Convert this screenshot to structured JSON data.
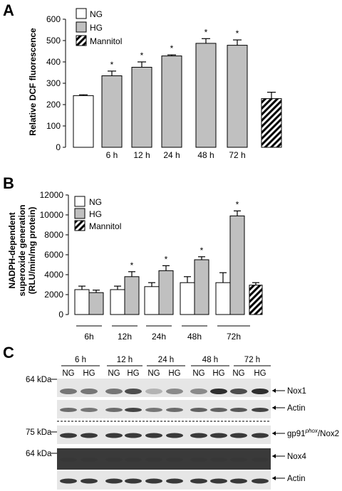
{
  "colors": {
    "ng": "#ffffff",
    "hg": "#c0c0c0",
    "mannitol": "hatched",
    "blot_bg": "#e6e6e6",
    "band": "#1a1a1a"
  },
  "chart_data": [
    {
      "panel": "A",
      "type": "bar",
      "ylabel": "Relative DCF fluorescence",
      "ylim": [
        0,
        600
      ],
      "yticks": [
        0,
        100,
        200,
        300,
        400,
        500,
        600
      ],
      "legend": [
        "NG",
        "HG",
        "Mannitol"
      ],
      "legend_position": "top-left",
      "categories": [
        "",
        "6 h",
        "12 h",
        "24 h",
        "48 h",
        "72 h",
        ""
      ],
      "bars": [
        {
          "group": "NG",
          "value": 242,
          "error": 4,
          "star": ""
        },
        {
          "group": "HG",
          "value": 335,
          "error": 22,
          "star": "*"
        },
        {
          "group": "HG",
          "value": 375,
          "error": 25,
          "star": "*"
        },
        {
          "group": "HG",
          "value": 428,
          "error": 5,
          "star": "*"
        },
        {
          "group": "HG",
          "value": 487,
          "error": 22,
          "star": "*"
        },
        {
          "group": "HG",
          "value": 478,
          "error": 25,
          "star": "*"
        },
        {
          "group": "Mannitol",
          "value": 228,
          "error": 30,
          "star": ""
        }
      ]
    },
    {
      "panel": "B",
      "type": "bar",
      "ylabel_lines": [
        "NADPH-dependent",
        "superoxide generation",
        "(RLU/min/mg protein)"
      ],
      "ylim": [
        0,
        12000
      ],
      "yticks": [
        0,
        2000,
        4000,
        6000,
        8000,
        10000,
        12000
      ],
      "legend": [
        "NG",
        "HG",
        "Mannitol"
      ],
      "legend_position": "top-left",
      "categories": [
        "6h",
        "12h",
        "24h",
        "48h",
        "72h"
      ],
      "series": [
        {
          "name": "NG",
          "values": [
            2500,
            2500,
            2800,
            3200,
            3200
          ],
          "errors": [
            350,
            350,
            400,
            600,
            1000
          ],
          "stars": [
            "",
            "",
            "",
            "",
            ""
          ]
        },
        {
          "name": "HG",
          "values": [
            2200,
            3800,
            4400,
            5500,
            9900
          ],
          "errors": [
            250,
            500,
            500,
            300,
            500
          ],
          "stars": [
            "",
            "*",
            "*",
            "*",
            "*"
          ]
        }
      ],
      "mannitol": {
        "value": 2950,
        "error": 250
      }
    }
  ],
  "blot": {
    "panel": "C",
    "timepoints": [
      "6 h",
      "12 h",
      "24 h",
      "48 h",
      "72 h"
    ],
    "lane_labels": [
      "NG",
      "HG"
    ],
    "markers": [
      "64 kDa",
      "75 kDa",
      "64 kDa"
    ],
    "proteins": [
      "Nox1",
      "Actin",
      "Nox2",
      "Nox4",
      "Actin"
    ],
    "gp91_base": "gp91",
    "gp91_sup": "phox",
    "nox2_suffix": "/Nox2",
    "band_intensity": {
      "nox1": [
        0.55,
        0.55,
        0.55,
        0.75,
        0.25,
        0.45,
        0.45,
        0.9,
        0.75,
        0.9
      ],
      "actin1": [
        0.6,
        0.55,
        0.6,
        0.8,
        0.55,
        0.6,
        0.65,
        0.65,
        0.7,
        0.8
      ],
      "nox2": [
        0.85,
        0.85,
        0.85,
        0.85,
        0.85,
        0.85,
        0.85,
        0.85,
        0.85,
        0.85
      ],
      "nox4": [
        0.1,
        0.1,
        0.1,
        0.1,
        0.1,
        0.1,
        0.1,
        0.1,
        0.1,
        0.1
      ],
      "actin2": [
        0.85,
        0.85,
        0.85,
        0.85,
        0.85,
        0.85,
        0.85,
        0.85,
        0.85,
        0.85
      ]
    }
  }
}
